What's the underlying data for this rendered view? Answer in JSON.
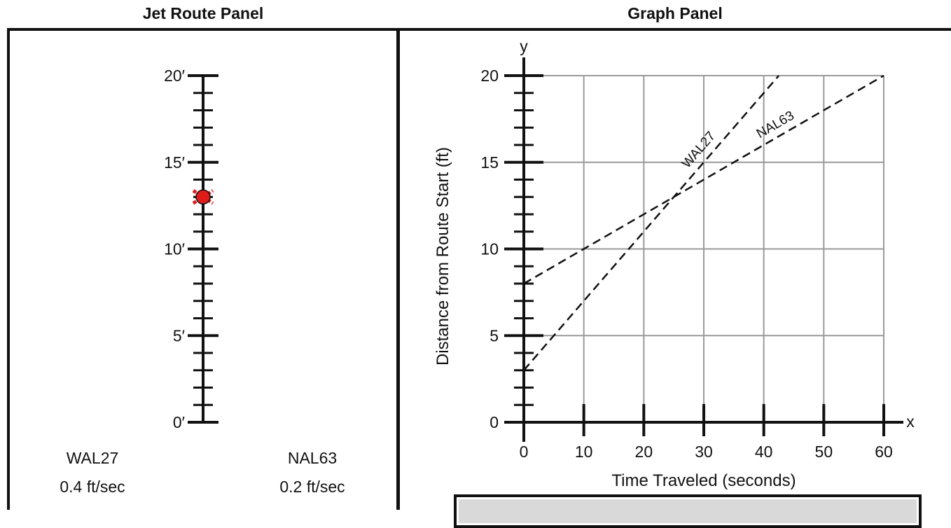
{
  "panels": {
    "left_title": "Jet Route Panel",
    "right_title": "Graph Panel"
  },
  "route_scale": {
    "tick_labels": [
      "0′",
      "5′",
      "10′",
      "15′",
      "20′"
    ],
    "max_ft": 20,
    "marker_position_ft": 13,
    "marker_color": "#e11a1a"
  },
  "jets": [
    {
      "name": "WAL27",
      "speed": "0.4 ft/sec"
    },
    {
      "name": "NAL63",
      "speed": "0.2 ft/sec"
    }
  ],
  "chart_data": {
    "type": "line",
    "xlabel": "Time Traveled (seconds)",
    "ylabel": "Distance from Route Start (ft)",
    "x_axis_letter": "x",
    "y_axis_letter": "y",
    "xlim": [
      0,
      60
    ],
    "ylim": [
      0,
      20
    ],
    "x_ticks": [
      0,
      10,
      20,
      30,
      40,
      50,
      60
    ],
    "y_ticks": [
      0,
      5,
      10,
      15,
      20
    ],
    "grid": true,
    "series": [
      {
        "name": "WAL27",
        "style": "dashed",
        "points": [
          [
            0,
            3
          ],
          [
            42.5,
            20
          ]
        ]
      },
      {
        "name": "NAL63",
        "style": "dashed",
        "points": [
          [
            0,
            8
          ],
          [
            60,
            20
          ]
        ]
      }
    ]
  },
  "status_panel": {
    "text": ""
  }
}
